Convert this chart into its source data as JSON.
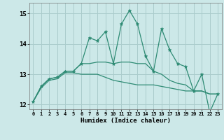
{
  "xlabel": "Humidex (Indice chaleur)",
  "x": [
    0,
    1,
    2,
    3,
    4,
    5,
    6,
    7,
    8,
    9,
    10,
    11,
    12,
    13,
    14,
    15,
    16,
    17,
    18,
    19,
    20,
    21,
    22,
    23
  ],
  "line_upper": [
    12.1,
    12.6,
    12.85,
    12.9,
    13.1,
    13.1,
    13.35,
    14.2,
    14.1,
    14.4,
    13.35,
    14.65,
    15.1,
    14.65,
    13.6,
    13.1,
    14.5,
    13.8,
    13.35,
    13.25,
    12.45,
    13.0,
    11.75,
    12.35
  ],
  "line_mean": [
    12.1,
    12.6,
    12.85,
    12.9,
    13.1,
    13.1,
    13.35,
    13.35,
    13.4,
    13.4,
    13.35,
    13.4,
    13.4,
    13.35,
    13.35,
    13.1,
    13.0,
    12.8,
    12.7,
    12.65,
    12.45,
    12.45,
    12.35,
    12.35
  ],
  "line_lower": [
    12.1,
    12.55,
    12.8,
    12.85,
    13.05,
    13.05,
    13.0,
    13.0,
    13.0,
    12.9,
    12.8,
    12.75,
    12.7,
    12.65,
    12.65,
    12.65,
    12.6,
    12.55,
    12.5,
    12.45,
    12.45,
    12.45,
    12.35,
    12.35
  ],
  "line_color": "#2e8b74",
  "bg_color": "#cce8e8",
  "grid_color": "#aacccc",
  "ylim": [
    11.85,
    15.35
  ],
  "yticks": [
    12,
    13,
    14,
    15
  ],
  "xlim": [
    -0.5,
    23.5
  ]
}
